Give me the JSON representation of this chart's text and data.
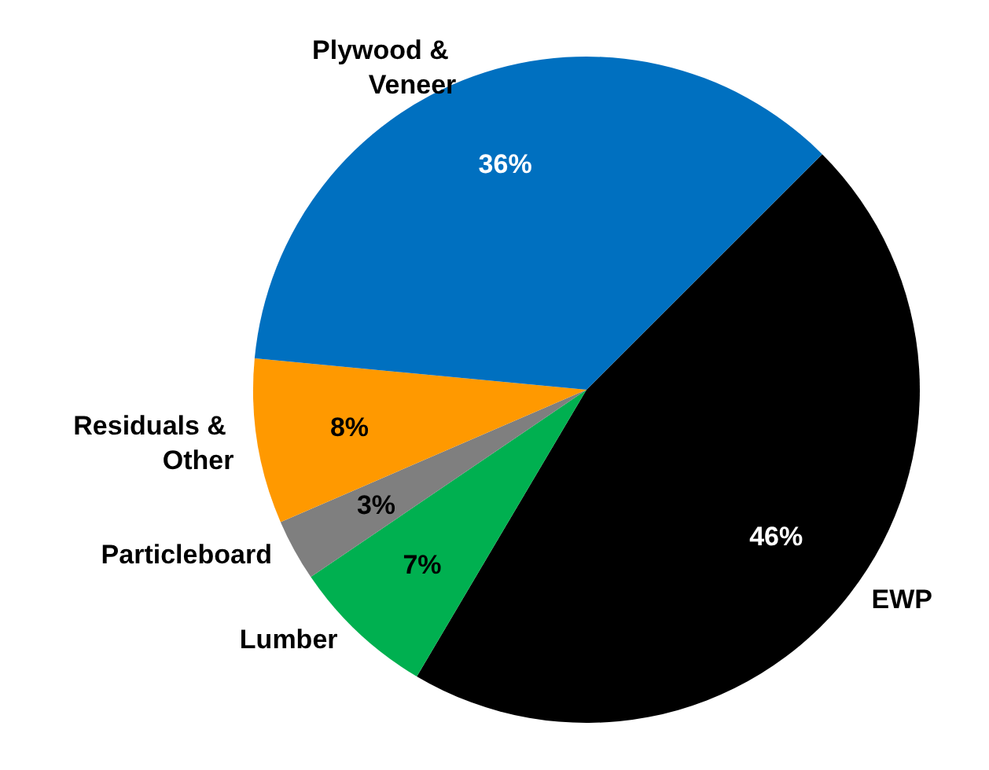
{
  "chart_data": {
    "type": "pie",
    "categories": [
      "EWP",
      "Lumber",
      "Particleboard",
      "Residuals & Other",
      "Plywood & Veneer"
    ],
    "values": [
      46,
      7,
      3,
      8,
      36
    ],
    "colors": [
      "#000000",
      "#00b050",
      "#7f7f7f",
      "#ff9900",
      "#0070c0"
    ],
    "value_labels": [
      "46%",
      "7%",
      "3%",
      "8%",
      "36%"
    ]
  }
}
